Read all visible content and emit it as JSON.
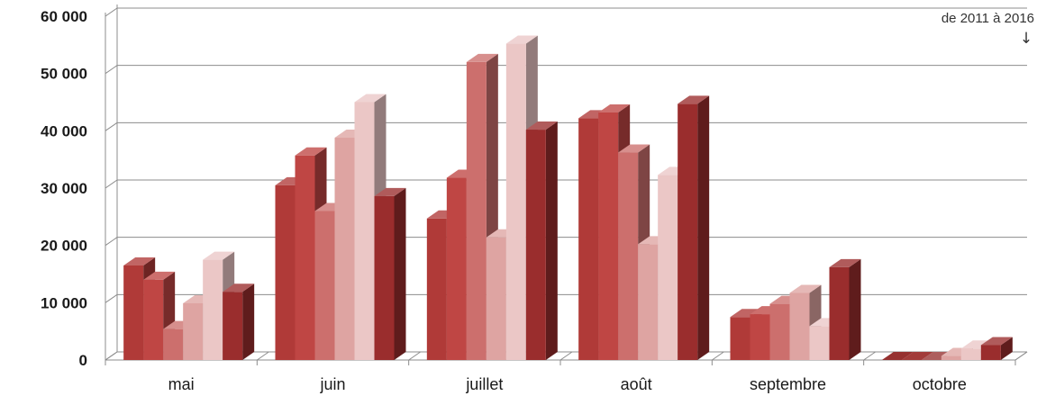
{
  "chart_data": {
    "type": "bar",
    "style": "3d-clustered-column",
    "categories": [
      "mai",
      "juin",
      "juillet",
      "août",
      "septembre",
      "octobre"
    ],
    "series": [
      {
        "color": "#b03a38",
        "values": [
          16500,
          30500,
          24700,
          42200,
          7500,
          0
        ]
      },
      {
        "color": "#bf4644",
        "values": [
          14000,
          35700,
          31800,
          43200,
          8000,
          0
        ]
      },
      {
        "color": "#cc6f6d",
        "values": [
          5400,
          26000,
          52000,
          36200,
          9800,
          0
        ]
      },
      {
        "color": "#dea4a2",
        "values": [
          9900,
          38800,
          21400,
          20200,
          11700,
          700
        ]
      },
      {
        "color": "#ebc7c6",
        "values": [
          17500,
          45000,
          55200,
          32300,
          5900,
          2000
        ]
      },
      {
        "color": "#9a2d2d",
        "values": [
          11900,
          28600,
          40200,
          44700,
          16200,
          2600
        ]
      }
    ],
    "ylim": [
      0,
      60000
    ],
    "yticks": [
      0,
      10000,
      20000,
      30000,
      40000,
      50000,
      60000
    ],
    "ytick_labels": [
      "0",
      "10 000",
      "20 000",
      "30 000",
      "40 000",
      "50 000",
      "60 000"
    ],
    "grid": true,
    "annotation": {
      "text": "de 2011 à 2016",
      "arrow": "↓"
    }
  }
}
